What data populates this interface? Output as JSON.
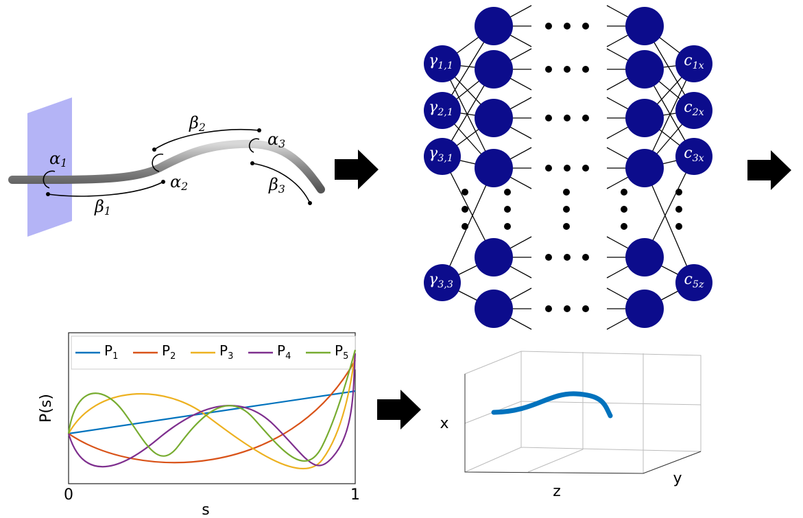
{
  "rod": {
    "alpha": [
      {
        "base": "α",
        "sub": "1"
      },
      {
        "base": "α",
        "sub": "2"
      },
      {
        "base": "α",
        "sub": "3"
      }
    ],
    "beta": [
      {
        "base": "β",
        "sub": "1"
      },
      {
        "base": "β",
        "sub": "2"
      },
      {
        "base": "β",
        "sub": "3"
      }
    ]
  },
  "network": {
    "inputs": [
      {
        "base": "γ",
        "sub": "1,1"
      },
      {
        "base": "γ",
        "sub": "2,1"
      },
      {
        "base": "γ",
        "sub": "3,1"
      },
      {
        "base": "γ",
        "sub": "3,3"
      }
    ],
    "outputs": [
      {
        "base": "c",
        "sub": "1x"
      },
      {
        "base": "c",
        "sub": "2x"
      },
      {
        "base": "c",
        "sub": "3x"
      },
      {
        "base": "c",
        "sub": "5z"
      }
    ]
  },
  "polynomial_plot": {
    "xlabel": "s",
    "ylabel": "P(s)",
    "xticks": [
      0,
      1
    ],
    "legend": [
      {
        "name": {
          "base": "P",
          "sub": "1"
        },
        "color": "#0072bd"
      },
      {
        "name": {
          "base": "P",
          "sub": "2"
        },
        "color": "#d95319"
      },
      {
        "name": {
          "base": "P",
          "sub": "3"
        },
        "color": "#edb120"
      },
      {
        "name": {
          "base": "P",
          "sub": "4"
        },
        "color": "#7e2f8e"
      },
      {
        "name": {
          "base": "P",
          "sub": "5"
        },
        "color": "#77ac30"
      }
    ]
  },
  "trajectory_plot": {
    "axis_labels": [
      "x",
      "z",
      "y"
    ]
  }
}
